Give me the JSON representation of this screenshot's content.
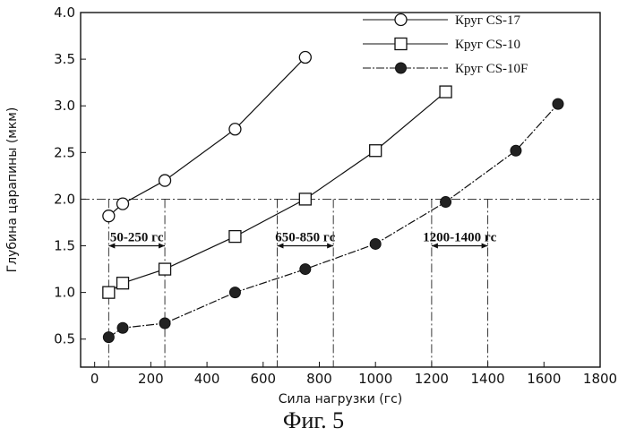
{
  "caption": "Фиг. 5",
  "chart_data": {
    "type": "line",
    "xlabel": "Сила нагрузки (гс)",
    "ylabel": "Глубина царапины (мкм)",
    "xlim": [
      -50,
      1800
    ],
    "ylim": [
      0.2,
      4.0
    ],
    "xticks": [
      0,
      200,
      400,
      600,
      800,
      1000,
      1200,
      1400,
      1600,
      1800
    ],
    "yticks": [
      0.5,
      1.0,
      1.5,
      2.0,
      2.5,
      3.0,
      3.5,
      4.0
    ],
    "xtick_labels": [
      "0",
      "200",
      "400",
      "600",
      "800",
      "1000",
      "1200",
      "1400",
      "1600",
      "1800"
    ],
    "ytick_labels": [
      "0.5",
      "1.0",
      "1.5",
      "2.0",
      "2.5",
      "3.0",
      "3.5",
      "4.0"
    ],
    "grid": false,
    "legend_position": "top-right",
    "series": [
      {
        "name": "Круг CS-17",
        "marker": "open-circle",
        "line": "solid",
        "x": [
          50,
          100,
          250,
          500,
          750
        ],
        "y": [
          1.82,
          1.95,
          2.2,
          2.75,
          3.52
        ]
      },
      {
        "name": "Круг CS-10",
        "marker": "open-square",
        "line": "solid",
        "x": [
          50,
          100,
          250,
          500,
          750,
          1000,
          1250
        ],
        "y": [
          1.0,
          1.1,
          1.25,
          1.6,
          2.0,
          2.52,
          3.15
        ]
      },
      {
        "name": "Круг CS-10F",
        "marker": "filled-circle",
        "line": "dash-dot",
        "x": [
          50,
          100,
          250,
          500,
          750,
          1000,
          1250,
          1500,
          1650
        ],
        "y": [
          0.52,
          0.62,
          0.67,
          1.0,
          1.25,
          1.52,
          1.97,
          2.52,
          3.02
        ]
      }
    ],
    "reference_line_y": 2.0,
    "annotations": [
      {
        "text": "50-250 гс",
        "from": 50,
        "to": 250,
        "y": 1.5
      },
      {
        "text": "650-850 гс",
        "from": 650,
        "to": 850,
        "y": 1.5
      },
      {
        "text": "1200-1400 гс",
        "from": 1200,
        "to": 1400,
        "y": 1.5
      }
    ]
  }
}
